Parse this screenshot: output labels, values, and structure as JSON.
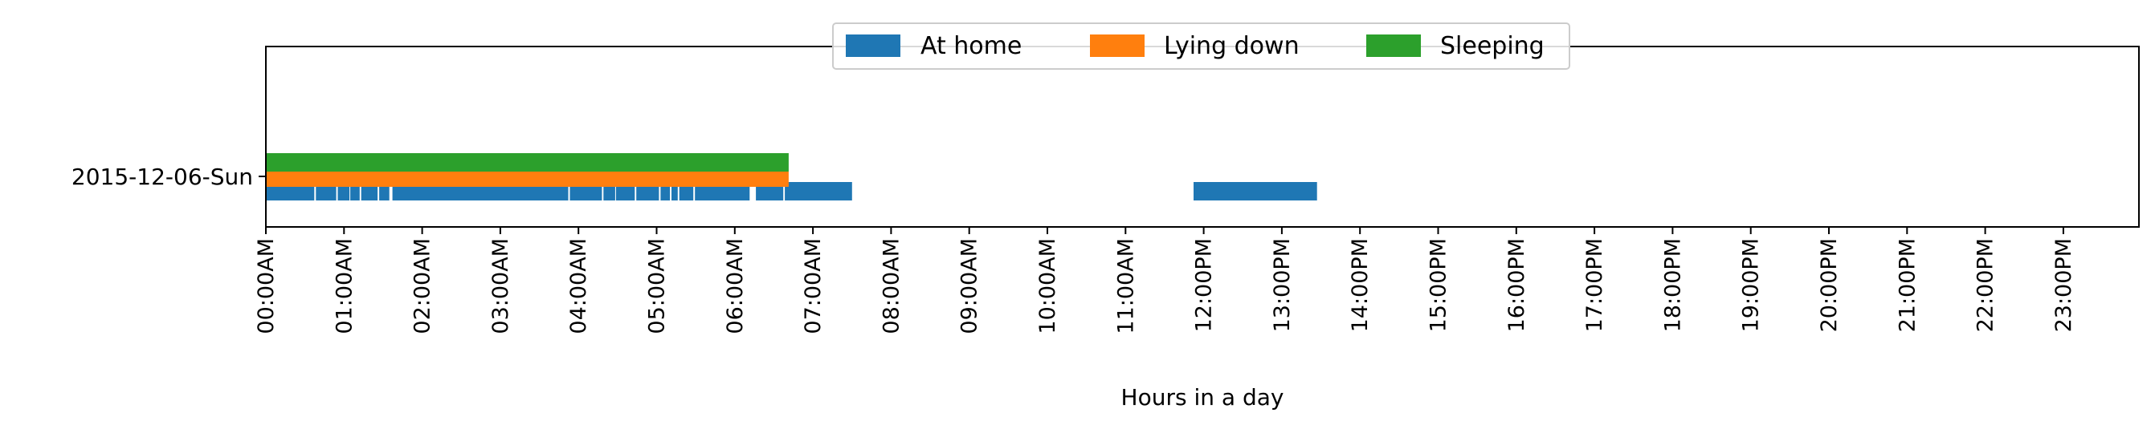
{
  "chart_data": {
    "type": "timeline",
    "xlabel": "Hours in a day",
    "xlim": [
      0,
      24
    ],
    "categories": [
      "2015-12-06-Sun"
    ],
    "x_ticks": [
      "00:00AM",
      "01:00AM",
      "02:00AM",
      "03:00AM",
      "04:00AM",
      "05:00AM",
      "06:00AM",
      "07:00AM",
      "08:00AM",
      "09:00AM",
      "10:00AM",
      "11:00AM",
      "12:00PM",
      "13:00PM",
      "14:00PM",
      "15:00PM",
      "16:00PM",
      "17:00PM",
      "18:00PM",
      "19:00PM",
      "20:00PM",
      "21:00PM",
      "22:00PM",
      "23:00PM"
    ],
    "legend_position": "top-center",
    "series": [
      {
        "name": "At home",
        "color": "#1f77b4",
        "intervals": [
          {
            "start": 0.0,
            "end": 0.62
          },
          {
            "start": 0.64,
            "end": 0.9
          },
          {
            "start": 0.92,
            "end": 1.07
          },
          {
            "start": 1.08,
            "end": 1.2
          },
          {
            "start": 1.22,
            "end": 1.43
          },
          {
            "start": 1.45,
            "end": 1.58
          },
          {
            "start": 1.62,
            "end": 3.87
          },
          {
            "start": 3.89,
            "end": 4.3
          },
          {
            "start": 4.32,
            "end": 4.47
          },
          {
            "start": 4.48,
            "end": 4.72
          },
          {
            "start": 4.74,
            "end": 5.03
          },
          {
            "start": 5.05,
            "end": 5.17
          },
          {
            "start": 5.19,
            "end": 5.27
          },
          {
            "start": 5.29,
            "end": 5.47
          },
          {
            "start": 5.49,
            "end": 6.19
          },
          {
            "start": 6.27,
            "end": 6.62
          },
          {
            "start": 6.64,
            "end": 7.5
          },
          {
            "start": 11.87,
            "end": 13.45
          }
        ]
      },
      {
        "name": "Lying down",
        "color": "#ff7f0e",
        "intervals": [
          {
            "start": 0.0,
            "end": 6.69
          }
        ]
      },
      {
        "name": "Sleeping",
        "color": "#2ca02c",
        "intervals": [
          {
            "start": 0.0,
            "end": 6.69
          }
        ]
      }
    ]
  }
}
